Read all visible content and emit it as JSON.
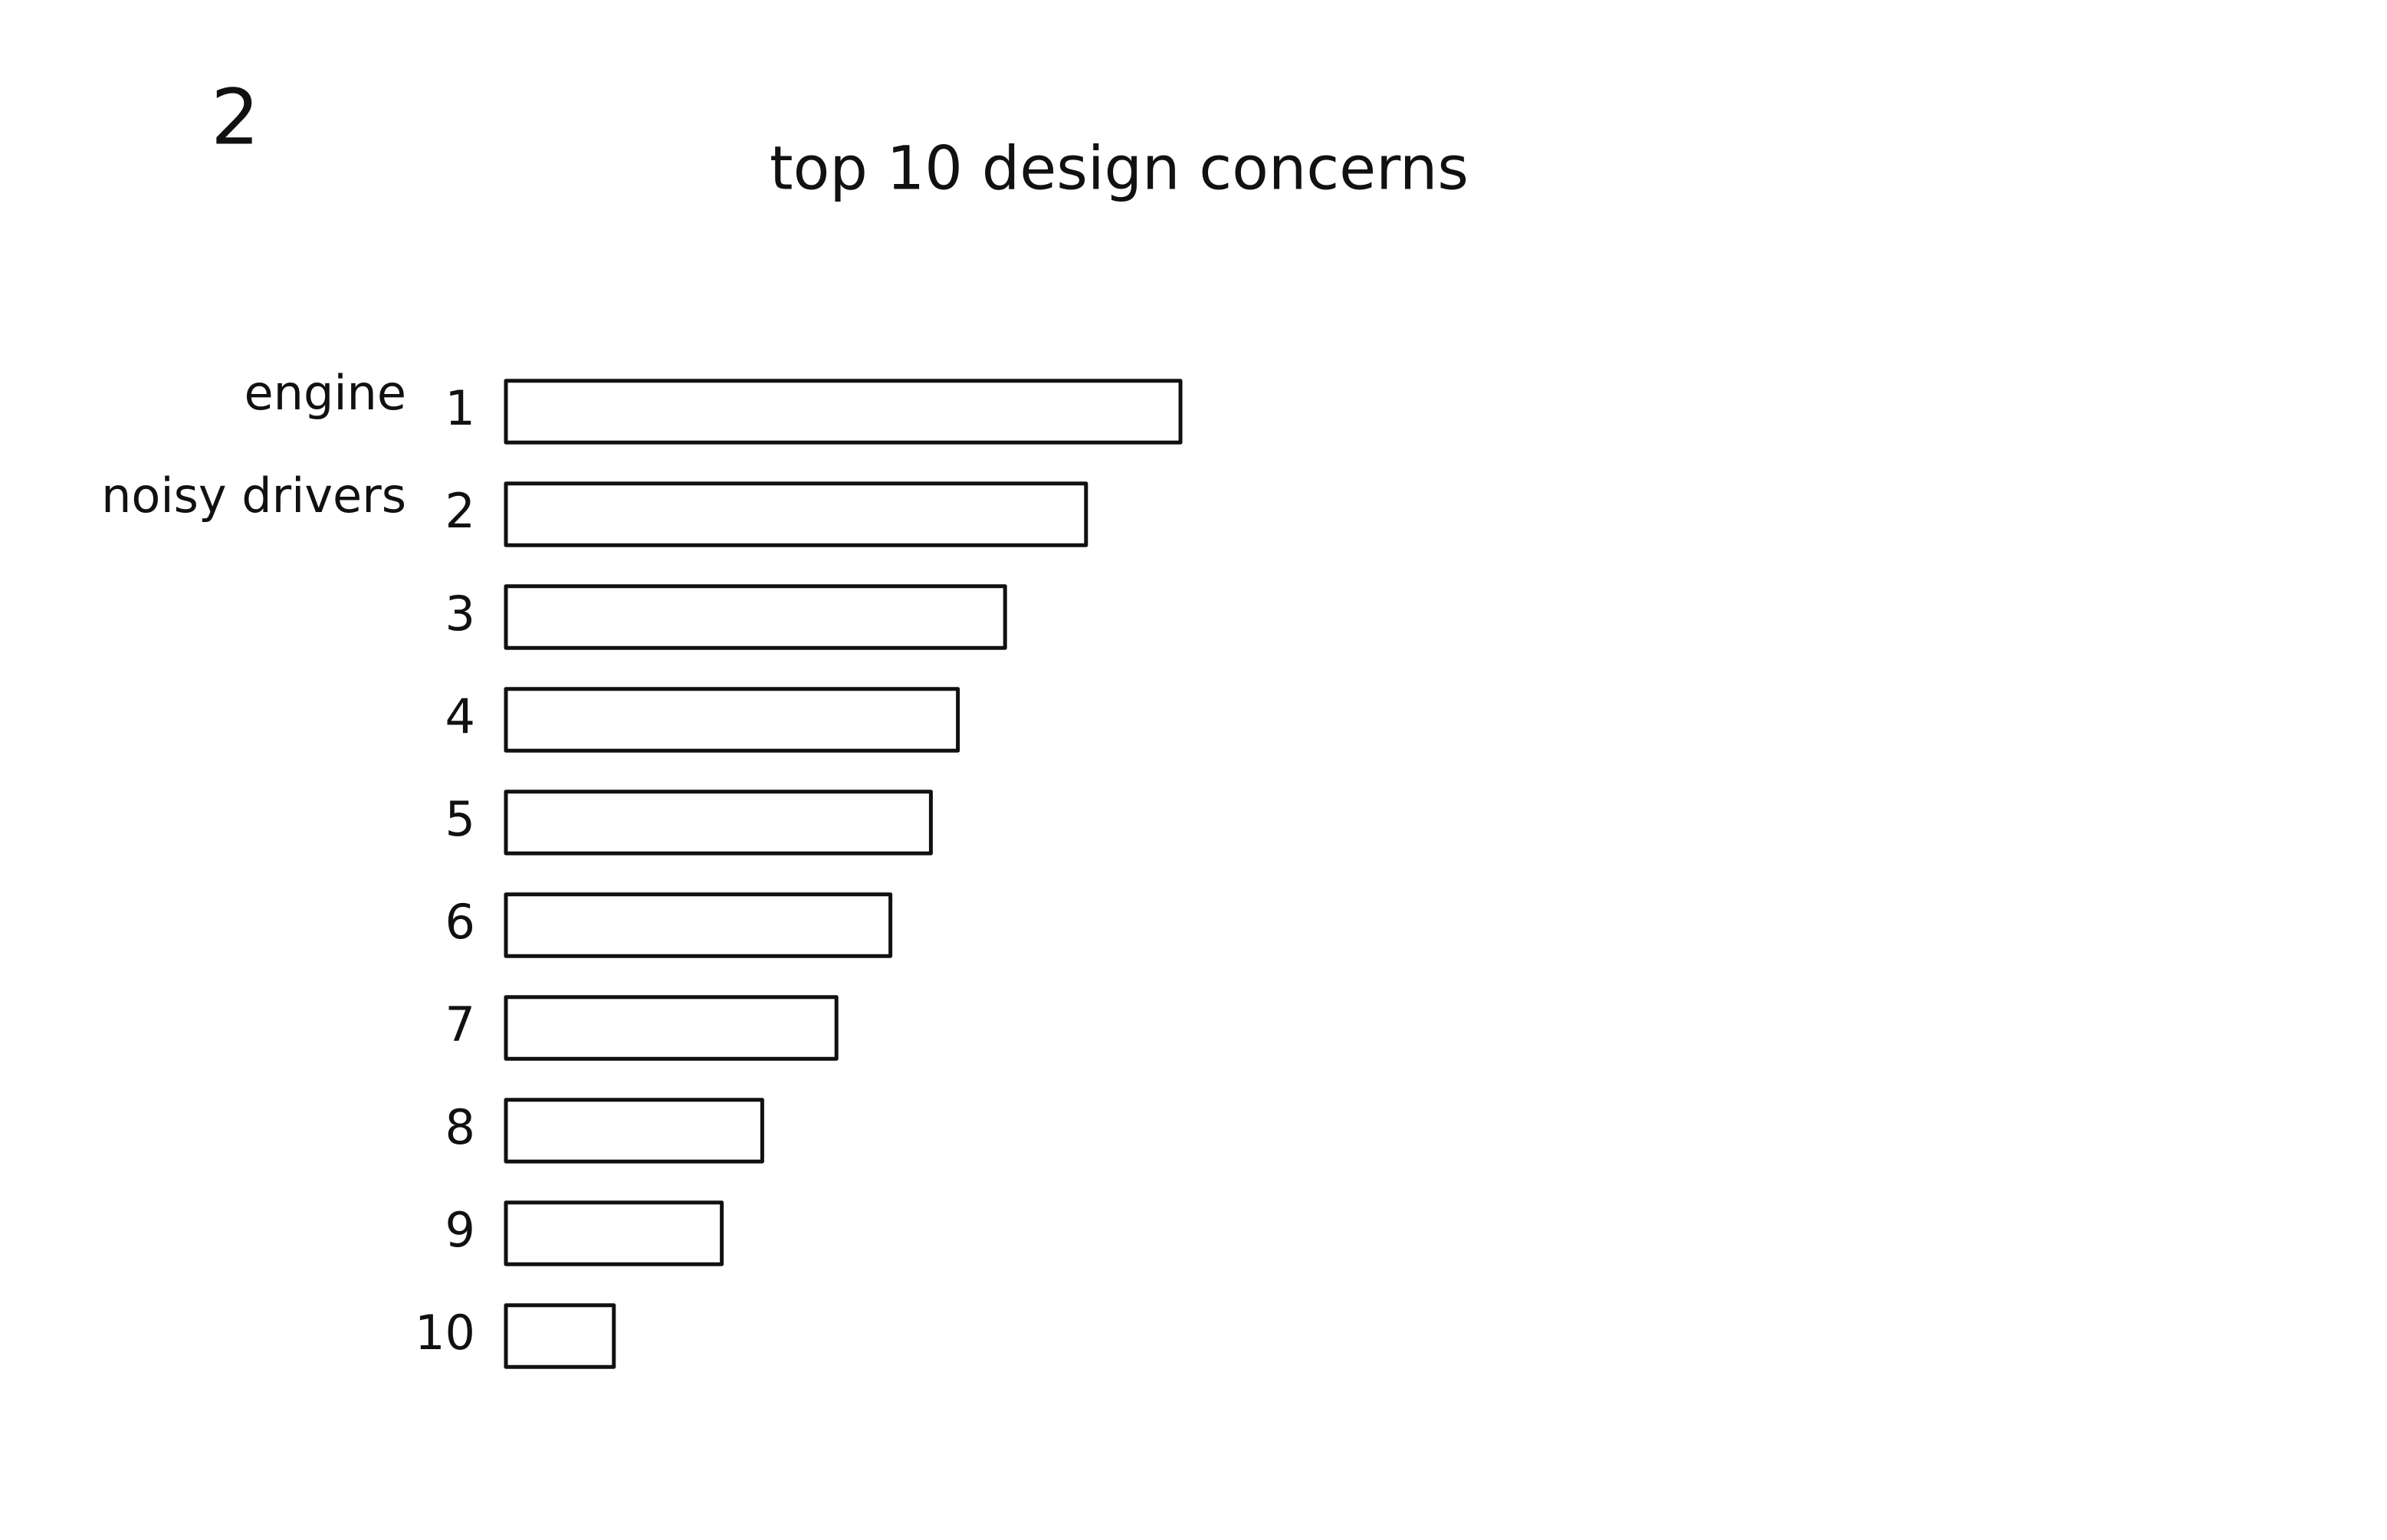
{
  "page_number": "2",
  "chart_data": {
    "type": "bar",
    "orientation": "horizontal",
    "title": "top 10 design concerns",
    "categories": [
      "1",
      "2",
      "3",
      "4",
      "5",
      "6",
      "7",
      "8",
      "9",
      "10"
    ],
    "category_names": [
      "engine",
      "noisy drivers",
      null,
      null,
      null,
      null,
      null,
      null,
      null,
      null
    ],
    "values": [
      100,
      86,
      74,
      67,
      63,
      57,
      49,
      38,
      32,
      16
    ],
    "xlim": [
      0,
      100
    ],
    "color": "#111111"
  }
}
